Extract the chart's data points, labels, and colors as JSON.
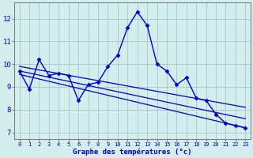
{
  "hours": [
    0,
    1,
    2,
    3,
    4,
    5,
    6,
    7,
    8,
    9,
    10,
    11,
    12,
    13,
    14,
    15,
    16,
    17,
    18,
    19,
    20,
    21,
    22,
    23
  ],
  "temps": [
    9.7,
    8.9,
    10.2,
    9.5,
    9.6,
    9.5,
    8.4,
    9.1,
    9.2,
    9.9,
    10.4,
    11.6,
    12.3,
    11.7,
    10.0,
    9.7,
    9.1,
    9.4,
    8.5,
    8.4,
    7.8,
    7.4,
    7.3,
    7.2
  ],
  "line_color": "#0000cc",
  "bg_color": "#d4eeee",
  "grid_color": "#aacccc",
  "axis_color": "#0000cc",
  "ylabel_ticks": [
    7,
    8,
    9,
    10,
    11,
    12
  ],
  "xlabel": "Graphe des températures (°c)",
  "ylim": [
    6.7,
    12.7
  ],
  "xlim": [
    -0.5,
    23.5
  ],
  "trend1": [
    9.9,
    8.1
  ],
  "trend2": [
    9.7,
    7.6
  ],
  "trend3": [
    9.55,
    7.2
  ]
}
